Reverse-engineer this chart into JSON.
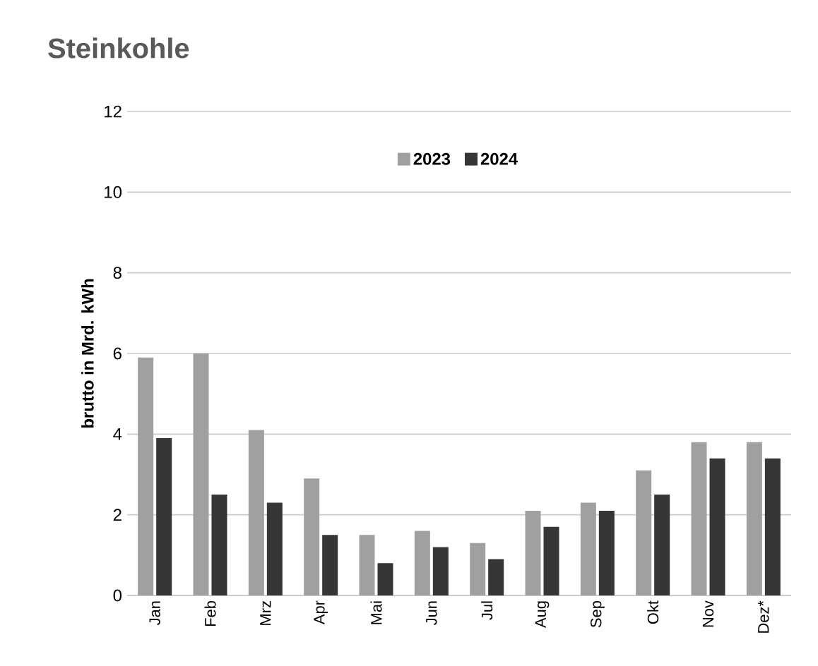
{
  "chart_data": {
    "type": "bar",
    "title": "Steinkohle",
    "ylabel": "brutto in  Mrd. kWh",
    "categories": [
      "Jan",
      "Feb",
      "Mrz",
      "Apr",
      "Mai",
      "Jun",
      "Jul",
      "Aug",
      "Sep",
      "Okt",
      "Nov",
      "Dez*"
    ],
    "series": [
      {
        "name": "2023",
        "color": "#a0a0a0",
        "values": [
          5.9,
          6.0,
          4.1,
          2.9,
          1.5,
          1.6,
          1.3,
          2.1,
          2.3,
          3.1,
          3.8,
          3.8
        ]
      },
      {
        "name": "2024",
        "color": "#363636",
        "values": [
          3.9,
          2.5,
          2.3,
          1.5,
          0.8,
          1.2,
          0.9,
          1.7,
          2.1,
          2.5,
          3.4,
          3.4
        ]
      }
    ],
    "ylim": [
      0,
      12
    ],
    "yticks": [
      0,
      2,
      4,
      6,
      8,
      10,
      12
    ],
    "grid": "y",
    "legend": "top"
  }
}
